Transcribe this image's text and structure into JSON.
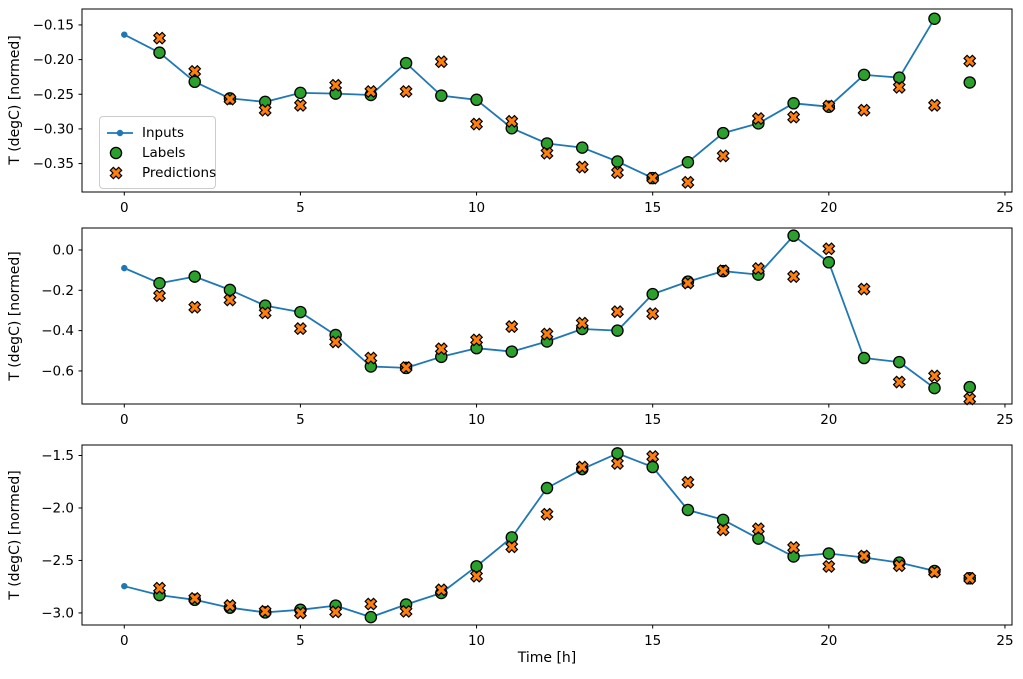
{
  "figure": {
    "kind": "matplotlib-figure",
    "background": "#ffffff",
    "x_axis_label": "Time [h]",
    "y_axis_label": "T (degC) [normed]",
    "colors": {
      "inputs_line": "#1f77b4",
      "labels_marker": "#2ca02c",
      "predictions_marker": "#ff7f0e",
      "marker_edge": "#000000",
      "legend_border": "#cccccc",
      "text": "#000000"
    },
    "legend": {
      "position": "upper-left-of-first-subplot",
      "items": [
        {
          "label": "Inputs",
          "style": "line-dot",
          "color": "#1f77b4"
        },
        {
          "label": "Labels",
          "style": "circle",
          "color": "#2ca02c"
        },
        {
          "label": "Predictions",
          "style": "x",
          "color": "#ff7f0e"
        }
      ]
    }
  },
  "chart_data": [
    {
      "type": "line",
      "subplot": 1,
      "title": "",
      "xlabel": "",
      "ylabel": "T (degC) [normed]",
      "grid": false,
      "xlim": [
        -1.2,
        25.2
      ],
      "ylim": [
        -0.391,
        -0.127
      ],
      "xticks": [
        0,
        5,
        10,
        15,
        20,
        25
      ],
      "xtick_labels": [
        "0",
        "5",
        "10",
        "15",
        "20",
        "25"
      ],
      "yticks": [
        -0.15,
        -0.2,
        -0.25,
        -0.3,
        -0.35
      ],
      "ytick_labels": [
        "−0.15",
        "−0.20",
        "−0.25",
        "−0.30",
        "−0.35"
      ],
      "series": [
        {
          "name": "Inputs",
          "style": "line-dot",
          "color": "#1f77b4",
          "x": [
            0,
            1,
            2,
            3,
            4,
            5,
            6,
            7,
            8,
            9,
            10,
            11,
            12,
            13,
            14,
            15,
            16,
            17,
            18,
            19,
            20,
            21,
            22,
            23
          ],
          "y": [
            -0.164,
            -0.19,
            -0.232,
            -0.256,
            -0.261,
            -0.248,
            -0.249,
            -0.251,
            -0.205,
            -0.252,
            -0.258,
            -0.299,
            -0.321,
            -0.327,
            -0.347,
            -0.371,
            -0.348,
            -0.306,
            -0.292,
            -0.263,
            -0.268,
            -0.222,
            -0.226,
            -0.141
          ]
        },
        {
          "name": "Labels",
          "style": "scatter-circle",
          "color": "#2ca02c",
          "x": [
            1,
            2,
            3,
            4,
            5,
            6,
            7,
            8,
            9,
            10,
            11,
            12,
            13,
            14,
            15,
            16,
            17,
            18,
            19,
            20,
            21,
            22,
            23,
            24
          ],
          "y": [
            -0.19,
            -0.232,
            -0.256,
            -0.261,
            -0.248,
            -0.249,
            -0.251,
            -0.205,
            -0.252,
            -0.258,
            -0.299,
            -0.321,
            -0.327,
            -0.347,
            -0.371,
            -0.348,
            -0.306,
            -0.292,
            -0.263,
            -0.268,
            -0.222,
            -0.226,
            -0.141,
            -0.233
          ]
        },
        {
          "name": "Predictions",
          "style": "scatter-x",
          "color": "#ff7f0e",
          "x": [
            1,
            2,
            3,
            4,
            5,
            6,
            7,
            8,
            9,
            10,
            11,
            12,
            13,
            14,
            15,
            16,
            17,
            18,
            19,
            20,
            21,
            22,
            23,
            24
          ],
          "y": [
            -0.169,
            -0.217,
            -0.257,
            -0.273,
            -0.266,
            -0.237,
            -0.246,
            -0.246,
            -0.203,
            -0.293,
            -0.289,
            -0.335,
            -0.355,
            -0.363,
            -0.371,
            -0.377,
            -0.339,
            -0.285,
            -0.283,
            -0.267,
            -0.273,
            -0.24,
            -0.266,
            -0.202
          ]
        }
      ]
    },
    {
      "type": "line",
      "subplot": 2,
      "title": "",
      "xlabel": "",
      "ylabel": "T (degC) [normed]",
      "grid": false,
      "xlim": [
        -1.2,
        25.2
      ],
      "ylim": [
        -0.764,
        0.109
      ],
      "xticks": [
        0,
        5,
        10,
        15,
        20,
        25
      ],
      "xtick_labels": [
        "0",
        "5",
        "10",
        "15",
        "20",
        "25"
      ],
      "yticks": [
        0.0,
        -0.2,
        -0.4,
        -0.6
      ],
      "ytick_labels": [
        "0.0",
        "−0.2",
        "−0.4",
        "−0.6"
      ],
      "series": [
        {
          "name": "Inputs",
          "style": "line-dot",
          "color": "#1f77b4",
          "x": [
            0,
            1,
            2,
            3,
            4,
            5,
            6,
            7,
            8,
            9,
            10,
            11,
            12,
            13,
            14,
            15,
            16,
            17,
            18,
            19,
            20,
            21,
            22,
            23
          ],
          "y": [
            -0.09,
            -0.165,
            -0.132,
            -0.198,
            -0.276,
            -0.308,
            -0.422,
            -0.578,
            -0.585,
            -0.53,
            -0.487,
            -0.504,
            -0.454,
            -0.392,
            -0.4,
            -0.219,
            -0.157,
            -0.105,
            -0.122,
            0.071,
            -0.061,
            -0.536,
            -0.556,
            -0.685
          ]
        },
        {
          "name": "Labels",
          "style": "scatter-circle",
          "color": "#2ca02c",
          "x": [
            1,
            2,
            3,
            4,
            5,
            6,
            7,
            8,
            9,
            10,
            11,
            12,
            13,
            14,
            15,
            16,
            17,
            18,
            19,
            20,
            21,
            22,
            23,
            24
          ],
          "y": [
            -0.165,
            -0.132,
            -0.198,
            -0.276,
            -0.308,
            -0.422,
            -0.578,
            -0.585,
            -0.53,
            -0.487,
            -0.504,
            -0.454,
            -0.392,
            -0.4,
            -0.219,
            -0.157,
            -0.105,
            -0.122,
            0.071,
            -0.061,
            -0.536,
            -0.556,
            -0.685,
            -0.68
          ]
        },
        {
          "name": "Predictions",
          "style": "scatter-x",
          "color": "#ff7f0e",
          "x": [
            1,
            2,
            3,
            4,
            5,
            6,
            7,
            8,
            9,
            10,
            11,
            12,
            13,
            14,
            15,
            16,
            17,
            18,
            19,
            20,
            21,
            22,
            23,
            24
          ],
          "y": [
            -0.227,
            -0.284,
            -0.248,
            -0.312,
            -0.39,
            -0.456,
            -0.536,
            -0.583,
            -0.49,
            -0.446,
            -0.38,
            -0.417,
            -0.363,
            -0.306,
            -0.316,
            -0.164,
            -0.103,
            -0.092,
            -0.132,
            0.006,
            -0.194,
            -0.655,
            -0.625,
            -0.739
          ]
        }
      ]
    },
    {
      "type": "line",
      "subplot": 3,
      "title": "",
      "xlabel": "Time [h]",
      "ylabel": "T (degC) [normed]",
      "grid": false,
      "xlim": [
        -1.2,
        25.2
      ],
      "ylim": [
        -3.115,
        -1.4
      ],
      "xticks": [
        0,
        5,
        10,
        15,
        20,
        25
      ],
      "xtick_labels": [
        "0",
        "5",
        "10",
        "15",
        "20",
        "25"
      ],
      "yticks": [
        -1.5,
        -2.0,
        -2.5,
        -3.0
      ],
      "ytick_labels": [
        "−1.5",
        "−2.0",
        "−2.5",
        "−3.0"
      ],
      "series": [
        {
          "name": "Inputs",
          "style": "line-dot",
          "color": "#1f77b4",
          "x": [
            0,
            1,
            2,
            3,
            4,
            5,
            6,
            7,
            8,
            9,
            10,
            11,
            12,
            13,
            14,
            15,
            16,
            17,
            18,
            19,
            20,
            21,
            22,
            23
          ],
          "y": [
            -2.745,
            -2.83,
            -2.875,
            -2.95,
            -2.995,
            -2.97,
            -2.93,
            -3.04,
            -2.92,
            -2.81,
            -2.556,
            -2.28,
            -1.81,
            -1.63,
            -1.48,
            -1.61,
            -2.019,
            -2.113,
            -2.292,
            -2.462,
            -2.434,
            -2.472,
            -2.52,
            -2.6
          ]
        },
        {
          "name": "Labels",
          "style": "scatter-circle",
          "color": "#2ca02c",
          "x": [
            1,
            2,
            3,
            4,
            5,
            6,
            7,
            8,
            9,
            10,
            11,
            12,
            13,
            14,
            15,
            16,
            17,
            18,
            19,
            20,
            21,
            22,
            23,
            24
          ],
          "y": [
            -2.83,
            -2.875,
            -2.95,
            -2.995,
            -2.97,
            -2.93,
            -3.04,
            -2.92,
            -2.81,
            -2.556,
            -2.28,
            -1.81,
            -1.63,
            -1.48,
            -1.61,
            -2.019,
            -2.113,
            -2.292,
            -2.462,
            -2.434,
            -2.472,
            -2.52,
            -2.6,
            -2.67
          ]
        },
        {
          "name": "Predictions",
          "style": "scatter-x",
          "color": "#ff7f0e",
          "x": [
            1,
            2,
            3,
            4,
            5,
            6,
            7,
            8,
            9,
            10,
            11,
            12,
            13,
            14,
            15,
            16,
            17,
            18,
            19,
            20,
            21,
            22,
            23,
            24
          ],
          "y": [
            -2.764,
            -2.862,
            -2.93,
            -2.985,
            -3.0,
            -2.99,
            -2.915,
            -2.985,
            -2.78,
            -2.65,
            -2.37,
            -2.06,
            -1.61,
            -1.576,
            -1.51,
            -1.755,
            -2.208,
            -2.198,
            -2.377,
            -2.557,
            -2.458,
            -2.55,
            -2.61,
            -2.67
          ]
        }
      ]
    }
  ]
}
